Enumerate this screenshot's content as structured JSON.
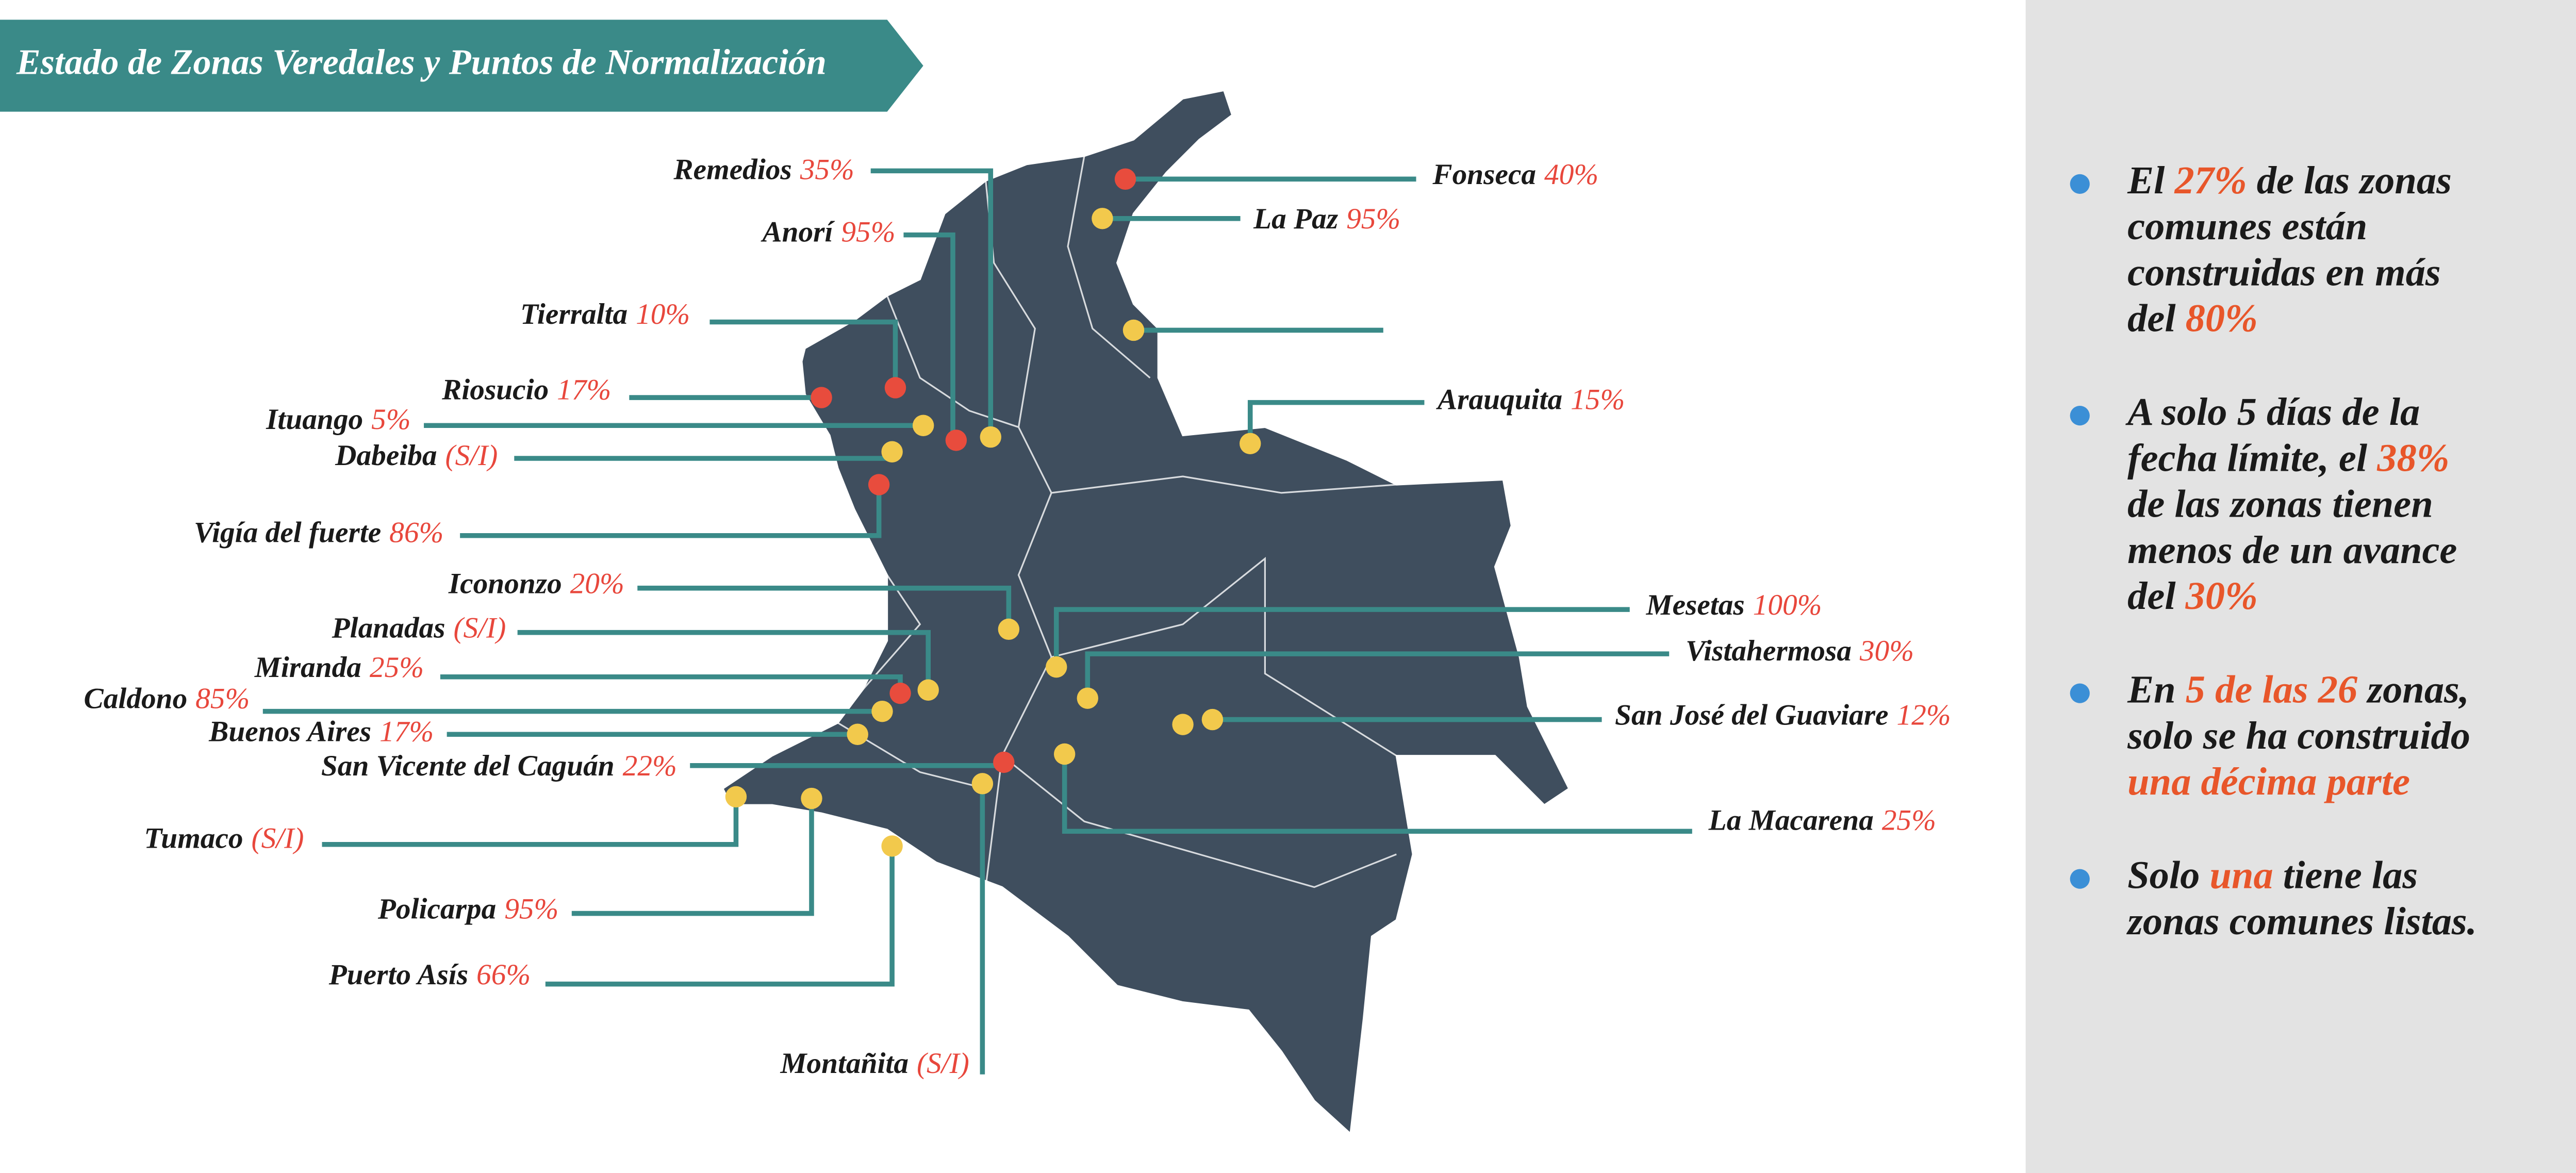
{
  "title": "Estado de Zonas Veredales y Puntos de Normalización",
  "value_color": "#e8473c",
  "accent_color": "#e8562a",
  "places": [
    {
      "name": "Remedios",
      "value": "35%",
      "color": "#f2c94c"
    },
    {
      "name": "Anorí",
      "value": "95%",
      "color": "#e84c3d"
    },
    {
      "name": "Tierralta",
      "value": "10%",
      "color": "#e84c3d"
    },
    {
      "name": "Riosucio",
      "value": "17%",
      "color": "#e84c3d"
    },
    {
      "name": "Ituango",
      "value": "5%",
      "color": "#f2c94c"
    },
    {
      "name": "Dabeiba",
      "value": "(S/I)",
      "color": "#f2c94c"
    },
    {
      "name": "Vigía del fuerte",
      "value": "86%",
      "color": "#e84c3d"
    },
    {
      "name": "Icononzo",
      "value": "20%",
      "color": "#f2c94c"
    },
    {
      "name": "Planadas",
      "value": "(S/I)",
      "color": "#f2c94c"
    },
    {
      "name": "Miranda",
      "value": "25%",
      "color": "#e84c3d"
    },
    {
      "name": "Caldono",
      "value": "85%",
      "color": "#f2c94c"
    },
    {
      "name": "Buenos Aires",
      "value": "17%",
      "color": "#f2c94c"
    },
    {
      "name": "San Vicente del Caguán",
      "value": "22%",
      "color": "#e84c3d"
    },
    {
      "name": "Tumaco",
      "value": "(S/I)",
      "color": "#f2c94c"
    },
    {
      "name": "Policarpa",
      "value": "95%",
      "color": "#f2c94c"
    },
    {
      "name": "Puerto Asís",
      "value": "66%",
      "color": "#f2c94c"
    },
    {
      "name": "Montañita",
      "value": "(S/I)",
      "color": "#f2c94c"
    },
    {
      "name": "Fonseca",
      "value": "40%",
      "color": "#e84c3d"
    },
    {
      "name": "La Paz",
      "value": "95%",
      "color": "#f2c94c"
    },
    {
      "name": "Arauquita",
      "value": "15%",
      "color": "#f2c94c"
    },
    {
      "name": "Mesetas",
      "value": "100%",
      "color": "#f2c94c"
    },
    {
      "name": "Vistahermosa",
      "value": "30%",
      "color": "#f2c94c"
    },
    {
      "name": "San José del Guaviare",
      "value": "12%",
      "color": "#f2c94c"
    },
    {
      "name": "La Macarena",
      "value": "25%",
      "color": "#f2c94c"
    }
  ],
  "bullets": [
    [
      [
        {
          "text": "El "
        },
        {
          "text": "27%",
          "accent": true
        },
        {
          "text": " de las zonas"
        }
      ],
      [
        {
          "text": "comunes están"
        }
      ],
      [
        {
          "text": "construidas en más"
        }
      ],
      [
        {
          "text": "del "
        },
        {
          "text": "80%",
          "accent": true
        }
      ]
    ],
    [
      [
        {
          "text": "A solo 5 días de la"
        }
      ],
      [
        {
          "text": "fecha límite, el "
        },
        {
          "text": "38%",
          "accent": true
        }
      ],
      [
        {
          "text": "de las zonas tienen"
        }
      ],
      [
        {
          "text": "menos de un avance"
        }
      ],
      [
        {
          "text": "del "
        },
        {
          "text": "30%",
          "accent": true
        }
      ]
    ],
    [
      [
        {
          "text": "En "
        },
        {
          "text": "5 de las 26",
          "accent": true
        },
        {
          "text": " zonas,"
        }
      ],
      [
        {
          "text": "solo se ha construido"
        }
      ],
      [
        {
          "text": "una décima parte",
          "accent": true
        }
      ]
    ],
    [
      [
        {
          "text": "Solo "
        },
        {
          "text": "una",
          "accent": true
        },
        {
          "text": " tiene las"
        }
      ],
      [
        {
          "text": "zonas comunes listas."
        }
      ]
    ]
  ]
}
